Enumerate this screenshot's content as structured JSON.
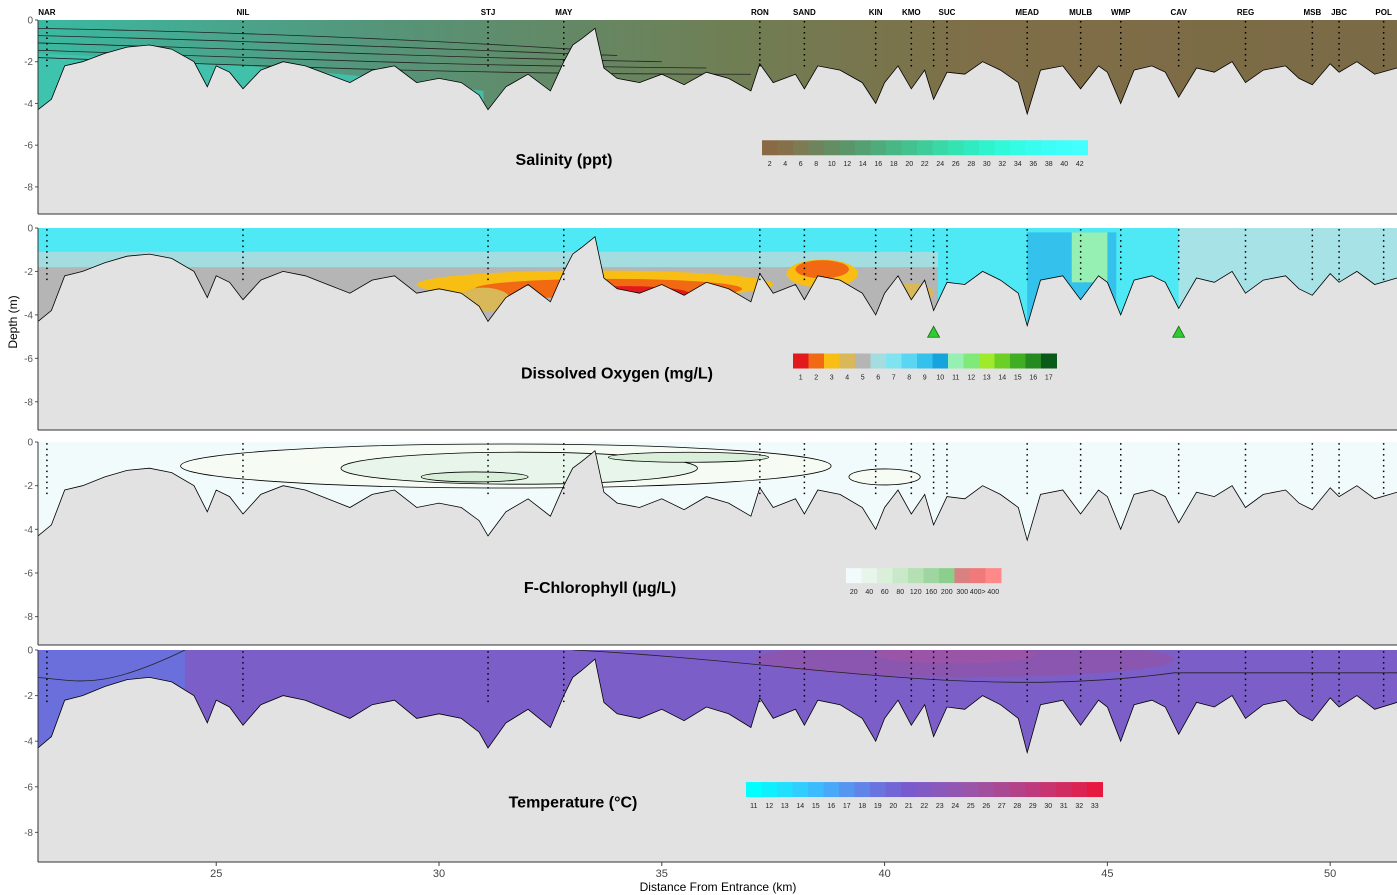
{
  "chart_data": {
    "type": "contour-section",
    "x_label": "Distance From Entrance (km)",
    "y_label": "Depth (m)",
    "x_range": [
      21,
      51.5
    ],
    "x_ticks": [
      25,
      30,
      35,
      40,
      45,
      50
    ],
    "y_range": [
      -9.3,
      0
    ],
    "y_ticks": [
      0,
      -2,
      -4,
      -6,
      -8
    ],
    "stations": [
      {
        "name": "NAR",
        "km": 21.2
      },
      {
        "name": "NIL",
        "km": 25.6
      },
      {
        "name": "STJ",
        "km": 31.1
      },
      {
        "name": "MAY",
        "km": 32.8
      },
      {
        "name": "RON",
        "km": 37.2
      },
      {
        "name": "SAND",
        "km": 38.2
      },
      {
        "name": "KIN",
        "km": 39.8
      },
      {
        "name": "KMO",
        "km": 40.6
      },
      {
        "name": "",
        "km": 41.1
      },
      {
        "name": "SUC",
        "km": 41.4
      },
      {
        "name": "MEAD",
        "km": 43.2
      },
      {
        "name": "MULB",
        "km": 44.4
      },
      {
        "name": "WMP",
        "km": 45.3
      },
      {
        "name": "CAV",
        "km": 46.6
      },
      {
        "name": "REG",
        "km": 48.1
      },
      {
        "name": "MSB",
        "km": 49.6
      },
      {
        "name": "JBC",
        "km": 50.2
      },
      {
        "name": "POL",
        "km": 51.2
      }
    ],
    "bathymetry_km": [
      21,
      21.3,
      21.6,
      22,
      22.5,
      23,
      23.5,
      24,
      24.5,
      24.8,
      25,
      25.3,
      25.6,
      26,
      26.5,
      27,
      27.5,
      28,
      28.5,
      29,
      29.5,
      30,
      30.5,
      30.9,
      31.1,
      31.5,
      32,
      32.5,
      32.8,
      33.0,
      33.2,
      33.5,
      33.7,
      34,
      34.5,
      35,
      35.5,
      36,
      36.5,
      37,
      37.2,
      37.5,
      38,
      38.2,
      38.5,
      39,
      39.5,
      39.8,
      40,
      40.3,
      40.6,
      40.9,
      41.1,
      41.4,
      41.8,
      42.2,
      42.6,
      43.0,
      43.2,
      43.5,
      44,
      44.4,
      44.8,
      45.0,
      45.3,
      45.6,
      46,
      46.3,
      46.6,
      47,
      47.4,
      47.8,
      48.1,
      48.5,
      49,
      49.3,
      49.6,
      50,
      50.2,
      50.6,
      51,
      51.5
    ],
    "bathymetry_depth": [
      -4.3,
      -3.8,
      -2.2,
      -2.0,
      -1.6,
      -1.3,
      -1.2,
      -1.4,
      -2.0,
      -3.2,
      -2.2,
      -2.5,
      -3.3,
      -2.4,
      -2.0,
      -2.2,
      -2.6,
      -3.0,
      -2.4,
      -2.2,
      -3.0,
      -2.8,
      -3.0,
      -3.6,
      -4.3,
      -3.2,
      -2.6,
      -3.4,
      -2.0,
      -1.2,
      -0.9,
      -0.4,
      -2.3,
      -2.8,
      -3.0,
      -2.6,
      -3.1,
      -2.5,
      -2.8,
      -3.4,
      -2.1,
      -3.0,
      -2.6,
      -3.3,
      -2.2,
      -2.4,
      -3.0,
      -4.0,
      -3.0,
      -2.2,
      -3.3,
      -2.4,
      -3.8,
      -2.5,
      -2.6,
      -2.0,
      -2.4,
      -3.0,
      -4.5,
      -2.4,
      -2.2,
      -3.3,
      -2.2,
      -2.5,
      -4.0,
      -2.4,
      -2.2,
      -2.5,
      -3.7,
      -2.3,
      -2.5,
      -2.0,
      -3.0,
      -2.4,
      -2.2,
      -2.8,
      -3.1,
      -2.1,
      -2.5,
      -2.0,
      -2.6,
      -2.3
    ],
    "panels": [
      {
        "title": "Salinity (ppt)",
        "legend_ticks": [
          "2",
          "4",
          "6",
          "8",
          "10",
          "12",
          "14",
          "16",
          "18",
          "20",
          "22",
          "24",
          "26",
          "28",
          "30",
          "32",
          "34",
          "36",
          "38",
          "40",
          "42"
        ],
        "colors": [
          "#8a6a45",
          "#86704a",
          "#7c7b54",
          "#6f845c",
          "#648d63",
          "#5b956a",
          "#55a072",
          "#4fab7b",
          "#49b685",
          "#43c28f",
          "#3ecd9a",
          "#39d8a6",
          "#34e2b2",
          "#2febbf",
          "#2ff3cc",
          "#30f8d9",
          "#33fbe4",
          "#38fdee",
          "#3dfef6",
          "#40fefa",
          "#44ffff"
        ],
        "surface_km": [
          21,
          24,
          27,
          30,
          33,
          36,
          38,
          40,
          42,
          44,
          46,
          48,
          51.5
        ],
        "surface_value": [
          18,
          16,
          14,
          12,
          10,
          8,
          6,
          4,
          3,
          3,
          3,
          3,
          3
        ]
      },
      {
        "title": "Dissolved Oxygen (mg/L)",
        "legend_ticks": [
          "1",
          "2",
          "3",
          "4",
          "5",
          "6",
          "7",
          "8",
          "9",
          "10",
          "11",
          "12",
          "13",
          "14",
          "15",
          "16",
          "17"
        ],
        "colors": [
          "#e31a1c",
          "#f16913",
          "#f9be14",
          "#d9b85a",
          "#b5b5b5",
          "#a3dde0",
          "#7fe3f0",
          "#5ad6f2",
          "#34c2ec",
          "#16a4de",
          "#97f0b3",
          "#7fea7a",
          "#9eea2b",
          "#6ccf25",
          "#3fae22",
          "#258a1f",
          "#0a5a1a"
        ],
        "hypoxia_markers_km": [
          41.1,
          46.6
        ]
      },
      {
        "title": "F-Chlorophyll (µg/L)",
        "legend_ticks": [
          "20",
          "40",
          "60",
          "80",
          "120",
          "160",
          "200",
          "300",
          "400>",
          "400"
        ],
        "colors": [
          "#f1fbfb",
          "#e7f5ea",
          "#d9efd9",
          "#c8e8c7",
          "#b4e0b4",
          "#9fd69f",
          "#8ccf8c",
          "#d98080",
          "#f07a7a",
          "#ff8888"
        ]
      },
      {
        "title": "Temperature (°C)",
        "legend_ticks": [
          "11",
          "12",
          "13",
          "14",
          "15",
          "16",
          "17",
          "18",
          "19",
          "20",
          "21",
          "22",
          "23",
          "24",
          "25",
          "26",
          "27",
          "28",
          "29",
          "30",
          "31",
          "32",
          "33"
        ],
        "colors": [
          "#00ffff",
          "#0ff0ff",
          "#20dfff",
          "#2fceff",
          "#3cbcff",
          "#4aa8f8",
          "#5696f0",
          "#6184e8",
          "#6a74df",
          "#7266d6",
          "#7a5bcd",
          "#825ac4",
          "#8a59bb",
          "#9257b2",
          "#9a54a8",
          "#a24f9d",
          "#aa4993",
          "#b44288",
          "#bd3b7c",
          "#c73470",
          "#d12c62",
          "#dc2452",
          "#e61a40"
        ]
      }
    ]
  }
}
